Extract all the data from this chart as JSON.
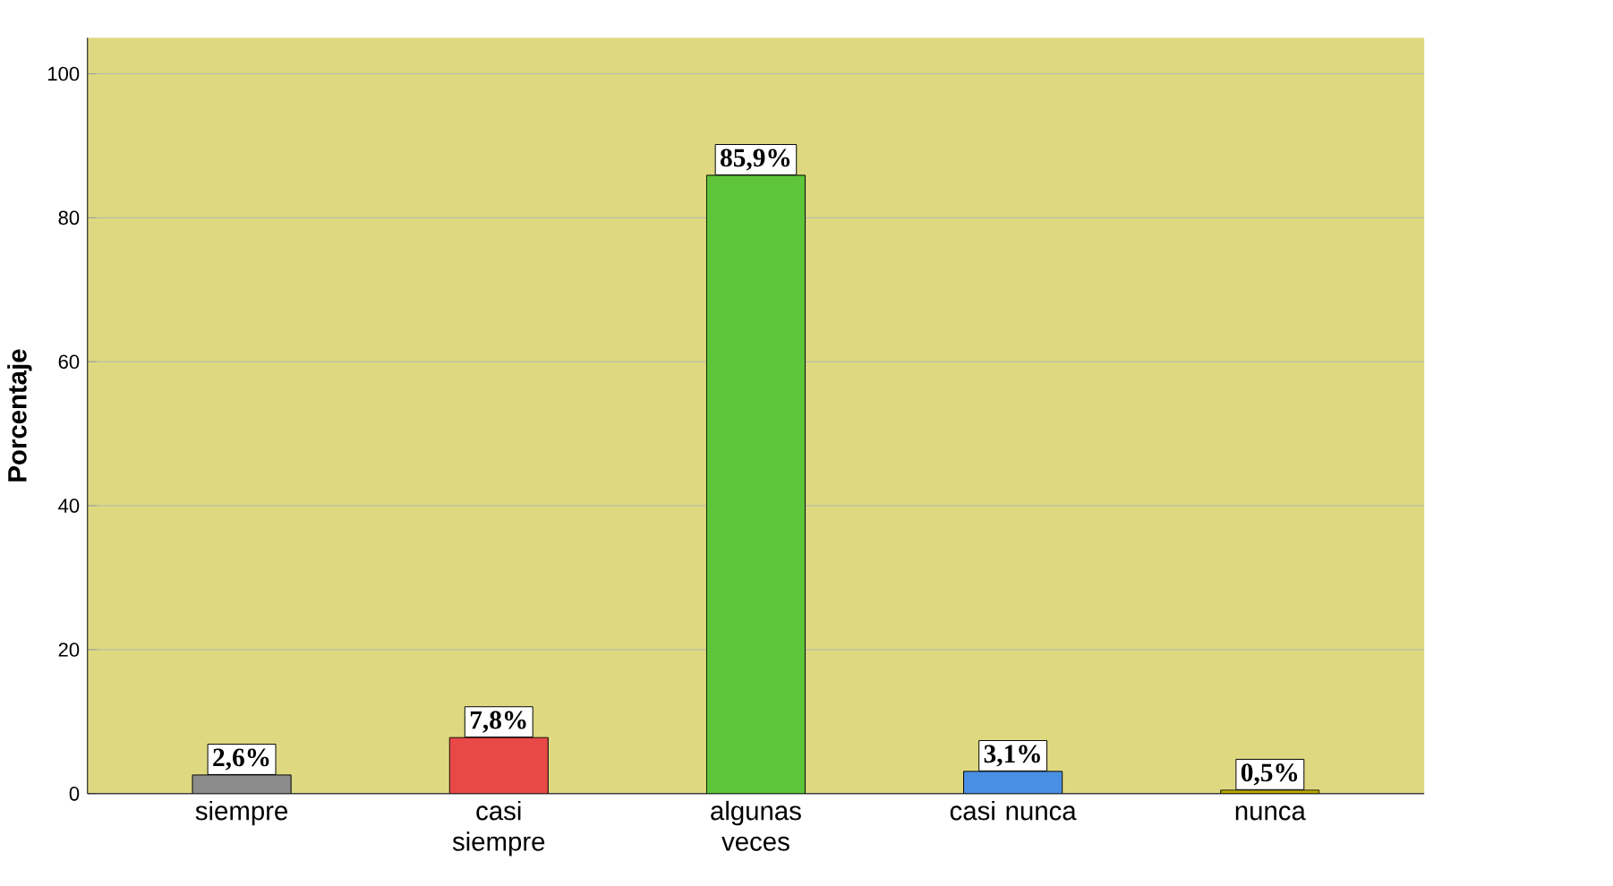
{
  "chart_data": {
    "type": "bar",
    "ylabel": "Porcentaje",
    "categories": [
      "siempre",
      "casi siempre",
      "algunas veces",
      "casi nunca",
      "nunca"
    ],
    "values": [
      2.6,
      7.8,
      85.9,
      3.1,
      0.5
    ],
    "colors": [
      "#8c8c8c",
      "#e84848",
      "#5ec43a",
      "#4a90e2",
      "#b8a800"
    ],
    "value_labels": [
      "2,6%",
      "7,8%",
      "85,9%",
      "3,1%",
      "0,5%"
    ],
    "ylim": [
      0,
      105
    ],
    "yticks": [
      0,
      20,
      40,
      60,
      80,
      100
    ],
    "grid": "y"
  }
}
